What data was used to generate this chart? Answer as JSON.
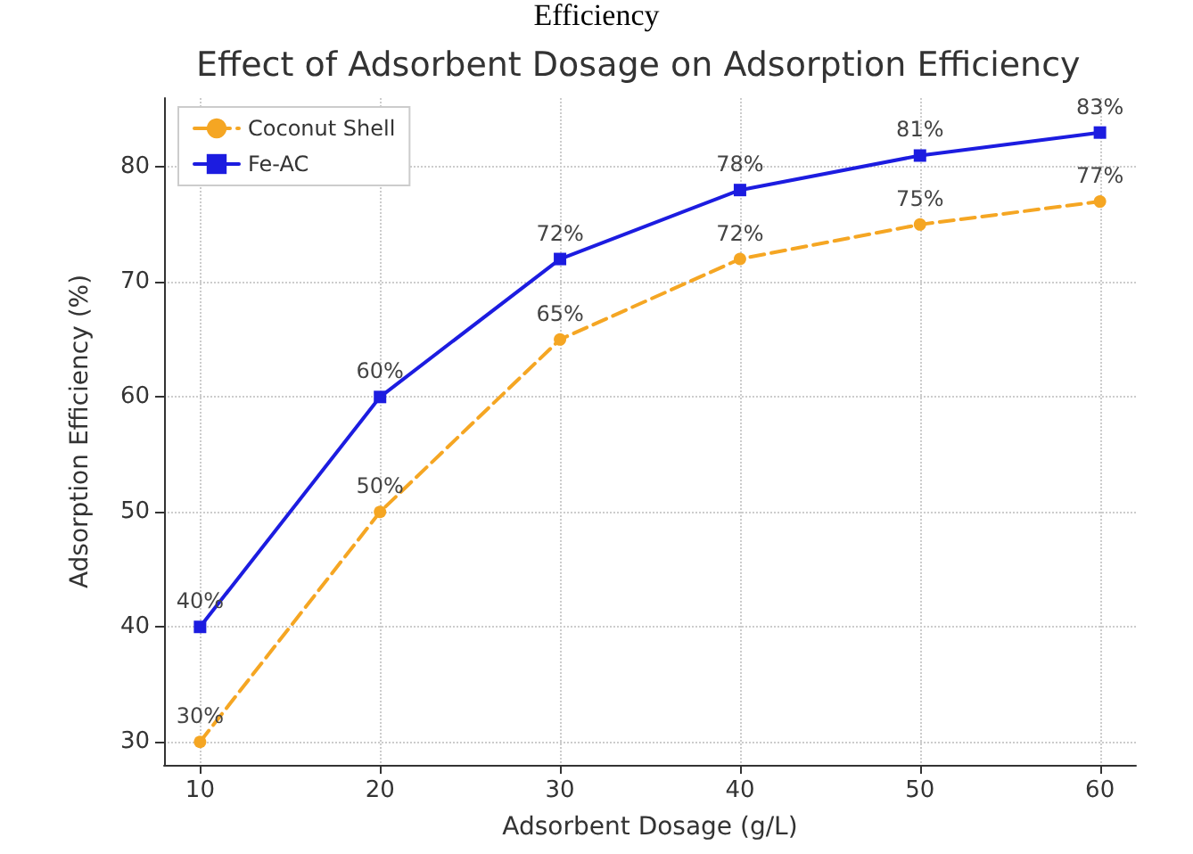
{
  "chart_data": {
    "type": "line",
    "title": "Effect of Adsorbent Dosage on Adsorption Efficiency",
    "annotations": [
      "Efficiency"
    ],
    "xlabel": "Adsorbent Dosage (g/L)",
    "ylabel": "Adsorption Efficiency (%)",
    "x": [
      10,
      20,
      30,
      40,
      50,
      60
    ],
    "series": [
      {
        "name": "Coconut Shell",
        "color": "#f5a623",
        "values": [
          30,
          50,
          65,
          72,
          75,
          77
        ],
        "value_labels": [
          "30%",
          "50%",
          "65%",
          "72%",
          "75%",
          "77%"
        ],
        "marker": "circle",
        "line_style": "dashed"
      },
      {
        "name": "Fe-AC",
        "color": "#1c1ce0",
        "values": [
          40,
          60,
          72,
          78,
          81,
          83
        ],
        "value_labels": [
          "40%",
          "60%",
          "72%",
          "78%",
          "81%",
          "83%"
        ],
        "marker": "square",
        "line_style": "solid"
      }
    ],
    "xlim": [
      8,
      62
    ],
    "xticks": [
      10,
      20,
      30,
      40,
      50,
      60
    ],
    "ylim": [
      28,
      86
    ],
    "yticks": [
      30,
      40,
      50,
      60,
      70,
      80
    ],
    "grid": true,
    "legend": "top left"
  }
}
